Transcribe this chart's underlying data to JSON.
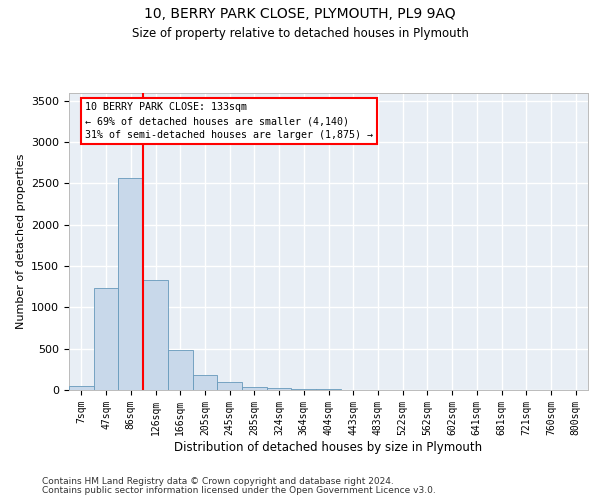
{
  "title1": "10, BERRY PARK CLOSE, PLYMOUTH, PL9 9AQ",
  "title2": "Size of property relative to detached houses in Plymouth",
  "xlabel": "Distribution of detached houses by size in Plymouth",
  "ylabel": "Number of detached properties",
  "bar_color": "#c8d8ea",
  "bar_edge_color": "#6699bb",
  "categories": [
    "7sqm",
    "47sqm",
    "86sqm",
    "126sqm",
    "166sqm",
    "205sqm",
    "245sqm",
    "285sqm",
    "324sqm",
    "364sqm",
    "404sqm",
    "443sqm",
    "483sqm",
    "522sqm",
    "562sqm",
    "602sqm",
    "641sqm",
    "681sqm",
    "721sqm",
    "760sqm",
    "800sqm"
  ],
  "values": [
    50,
    1230,
    2570,
    1330,
    480,
    185,
    95,
    40,
    25,
    15,
    8,
    4,
    3,
    1,
    0,
    0,
    0,
    0,
    0,
    0,
    0
  ],
  "ylim": [
    0,
    3600
  ],
  "yticks": [
    0,
    500,
    1000,
    1500,
    2000,
    2500,
    3000,
    3500
  ],
  "vline_color": "red",
  "vline_xidx": 2.5,
  "annotation_line1": "10 BERRY PARK CLOSE: 133sqm",
  "annotation_line2": "← 69% of detached houses are smaller (4,140)",
  "annotation_line3": "31% of semi-detached houses are larger (1,875) →",
  "footnote1": "Contains HM Land Registry data © Crown copyright and database right 2024.",
  "footnote2": "Contains public sector information licensed under the Open Government Licence v3.0.",
  "bg_color": "#e8eef5",
  "grid_color": "white"
}
